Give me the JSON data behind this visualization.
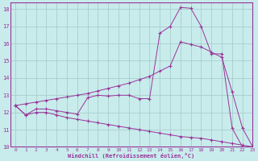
{
  "bg_color": "#c8ecec",
  "grid_color": "#aacccc",
  "line_color": "#993399",
  "xlabel": "Windchill (Refroidissement éolien,°C)",
  "xlim": [
    -0.5,
    23
  ],
  "ylim": [
    10,
    18.4
  ],
  "yticks": [
    10,
    11,
    12,
    13,
    14,
    15,
    16,
    17,
    18
  ],
  "xticks": [
    0,
    1,
    2,
    3,
    4,
    5,
    6,
    7,
    8,
    9,
    10,
    11,
    12,
    13,
    14,
    15,
    16,
    17,
    18,
    19,
    20,
    21,
    22,
    23
  ],
  "line1_x": [
    0,
    1,
    2,
    3,
    4,
    5,
    6,
    7,
    8,
    9,
    10,
    11,
    12,
    13,
    14,
    15,
    16,
    17,
    18,
    19,
    20,
    21,
    22,
    23
  ],
  "line1_y": [
    12.4,
    11.85,
    12.2,
    12.2,
    12.1,
    12.0,
    11.9,
    12.85,
    13.0,
    12.95,
    13.0,
    13.0,
    12.8,
    12.8,
    16.6,
    17.0,
    18.1,
    18.05,
    17.0,
    15.4,
    15.4,
    11.1,
    10.0,
    10.0
  ],
  "line2_x": [
    0,
    1,
    2,
    3,
    4,
    5,
    6,
    7,
    8,
    9,
    10,
    11,
    12,
    13,
    14,
    15,
    16,
    17,
    18,
    19,
    20,
    21,
    22,
    23
  ],
  "line2_y": [
    12.4,
    12.5,
    12.6,
    12.7,
    12.8,
    12.9,
    13.0,
    13.1,
    13.25,
    13.4,
    13.55,
    13.7,
    13.9,
    14.1,
    14.4,
    14.7,
    16.1,
    15.95,
    15.8,
    15.5,
    15.2,
    13.2,
    11.1,
    10.0
  ],
  "line3_x": [
    0,
    1,
    2,
    3,
    4,
    5,
    6,
    7,
    8,
    9,
    10,
    11,
    12,
    13,
    14,
    15,
    16,
    17,
    18,
    19,
    20,
    21,
    22,
    23
  ],
  "line3_y": [
    12.4,
    11.85,
    12.0,
    12.0,
    11.85,
    11.7,
    11.6,
    11.5,
    11.4,
    11.3,
    11.2,
    11.1,
    11.0,
    10.9,
    10.8,
    10.7,
    10.6,
    10.55,
    10.5,
    10.4,
    10.3,
    10.2,
    10.1,
    10.0
  ]
}
